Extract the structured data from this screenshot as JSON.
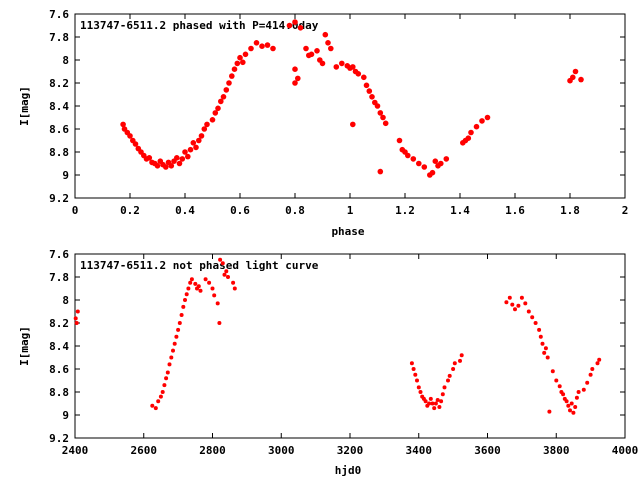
{
  "chart_data": [
    {
      "type": "scatter",
      "title": "113747-6511.2 phased with P=414.0day",
      "xlabel": "phase",
      "ylabel": "I[mag]",
      "xlim": [
        0,
        2
      ],
      "ylim": [
        7.6,
        9.2
      ],
      "y_inverted": true,
      "grid": false,
      "marker_color": "#ff0000",
      "x_ticks": [
        "0",
        "0.2",
        "0.4",
        "0.6",
        "0.8",
        "1",
        "1.2",
        "1.4",
        "1.6",
        "1.8",
        "2"
      ],
      "y_ticks": [
        "7.6",
        "7.8",
        "8",
        "8.2",
        "8.4",
        "8.6",
        "8.8",
        "9",
        "9.2"
      ],
      "series": [
        {
          "points": [
            [
              0.175,
              8.56
            ],
            [
              0.18,
              8.6
            ],
            [
              0.19,
              8.63
            ],
            [
              0.2,
              8.66
            ],
            [
              0.21,
              8.7
            ],
            [
              0.22,
              8.73
            ],
            [
              0.23,
              8.77
            ],
            [
              0.24,
              8.8
            ],
            [
              0.25,
              8.83
            ],
            [
              0.26,
              8.86
            ],
            [
              0.27,
              8.85
            ],
            [
              0.28,
              8.89
            ],
            [
              0.29,
              8.9
            ],
            [
              0.3,
              8.92
            ],
            [
              0.31,
              8.88
            ],
            [
              0.32,
              8.91
            ],
            [
              0.33,
              8.93
            ],
            [
              0.34,
              8.89
            ],
            [
              0.35,
              8.92
            ],
            [
              0.36,
              8.88
            ],
            [
              0.37,
              8.85
            ],
            [
              0.38,
              8.9
            ],
            [
              0.39,
              8.86
            ],
            [
              0.4,
              8.8
            ],
            [
              0.41,
              8.84
            ],
            [
              0.42,
              8.78
            ],
            [
              0.43,
              8.72
            ],
            [
              0.44,
              8.76
            ],
            [
              0.45,
              8.7
            ],
            [
              0.46,
              8.66
            ],
            [
              0.47,
              8.6
            ],
            [
              0.48,
              8.56
            ],
            [
              0.5,
              8.52
            ],
            [
              0.51,
              8.46
            ],
            [
              0.52,
              8.42
            ],
            [
              0.53,
              8.36
            ],
            [
              0.54,
              8.32
            ],
            [
              0.55,
              8.26
            ],
            [
              0.56,
              8.2
            ],
            [
              0.57,
              8.14
            ],
            [
              0.58,
              8.08
            ],
            [
              0.59,
              8.03
            ],
            [
              0.6,
              7.98
            ],
            [
              0.61,
              8.02
            ],
            [
              0.62,
              7.95
            ],
            [
              0.64,
              7.9
            ],
            [
              0.66,
              7.85
            ],
            [
              0.68,
              7.88
            ],
            [
              0.7,
              7.87
            ],
            [
              0.72,
              7.9
            ],
            [
              0.78,
              7.7
            ],
            [
              0.8,
              7.67
            ],
            [
              0.82,
              7.72
            ],
            [
              0.8,
              8.08
            ],
            [
              0.81,
              8.16
            ],
            [
              0.8,
              8.2
            ],
            [
              0.84,
              7.9
            ],
            [
              0.85,
              7.96
            ],
            [
              0.86,
              7.95
            ],
            [
              0.88,
              7.92
            ],
            [
              0.89,
              8.0
            ],
            [
              0.9,
              8.03
            ],
            [
              0.91,
              7.78
            ],
            [
              0.92,
              7.85
            ],
            [
              0.93,
              7.9
            ],
            [
              0.95,
              8.06
            ],
            [
              0.97,
              8.03
            ],
            [
              0.99,
              8.05
            ],
            [
              1.0,
              8.07
            ],
            [
              1.01,
              8.06
            ],
            [
              1.02,
              8.1
            ],
            [
              1.03,
              8.12
            ],
            [
              1.05,
              8.15
            ],
            [
              1.06,
              8.22
            ],
            [
              1.07,
              8.27
            ],
            [
              1.08,
              8.32
            ],
            [
              1.09,
              8.37
            ],
            [
              1.1,
              8.4
            ],
            [
              1.11,
              8.46
            ],
            [
              1.12,
              8.5
            ],
            [
              1.13,
              8.55
            ],
            [
              1.01,
              8.56
            ],
            [
              1.11,
              8.97
            ],
            [
              1.18,
              8.7
            ],
            [
              1.19,
              8.78
            ],
            [
              1.2,
              8.8
            ],
            [
              1.21,
              8.83
            ],
            [
              1.23,
              8.86
            ],
            [
              1.25,
              8.9
            ],
            [
              1.27,
              8.93
            ],
            [
              1.29,
              9.0
            ],
            [
              1.3,
              8.98
            ],
            [
              1.31,
              8.88
            ],
            [
              1.32,
              8.92
            ],
            [
              1.33,
              8.9
            ],
            [
              1.35,
              8.86
            ],
            [
              1.41,
              8.72
            ],
            [
              1.42,
              8.7
            ],
            [
              1.43,
              8.68
            ],
            [
              1.44,
              8.63
            ],
            [
              1.46,
              8.58
            ],
            [
              1.48,
              8.53
            ],
            [
              1.5,
              8.5
            ],
            [
              1.8,
              8.18
            ],
            [
              1.81,
              8.15
            ],
            [
              1.82,
              8.1
            ],
            [
              1.84,
              8.17
            ]
          ]
        }
      ]
    },
    {
      "type": "scatter",
      "title": "113747-6511.2 not phased light curve",
      "xlabel": "hjd0",
      "ylabel": "I[mag]",
      "xlim": [
        2400,
        4000
      ],
      "ylim": [
        7.6,
        9.2
      ],
      "y_inverted": true,
      "grid": false,
      "marker_color": "#ff0000",
      "x_ticks": [
        "2400",
        "2600",
        "2800",
        "3000",
        "3200",
        "3400",
        "3600",
        "3800",
        "4000"
      ],
      "y_ticks": [
        "7.6",
        "7.8",
        "8",
        "8.2",
        "8.4",
        "8.6",
        "8.8",
        "9",
        "9.2"
      ],
      "series": [
        {
          "points": [
            [
              2402,
              8.16
            ],
            [
              2408,
              8.1
            ],
            [
              2405,
              8.2
            ],
            [
              2625,
              8.92
            ],
            [
              2635,
              8.94
            ],
            [
              2642,
              8.88
            ],
            [
              2650,
              8.84
            ],
            [
              2655,
              8.8
            ],
            [
              2660,
              8.74
            ],
            [
              2665,
              8.68
            ],
            [
              2670,
              8.63
            ],
            [
              2675,
              8.56
            ],
            [
              2680,
              8.5
            ],
            [
              2685,
              8.44
            ],
            [
              2690,
              8.38
            ],
            [
              2695,
              8.32
            ],
            [
              2700,
              8.26
            ],
            [
              2705,
              8.2
            ],
            [
              2710,
              8.13
            ],
            [
              2715,
              8.06
            ],
            [
              2720,
              8.0
            ],
            [
              2725,
              7.95
            ],
            [
              2730,
              7.9
            ],
            [
              2735,
              7.85
            ],
            [
              2740,
              7.82
            ],
            [
              2750,
              7.86
            ],
            [
              2755,
              7.9
            ],
            [
              2760,
              7.88
            ],
            [
              2765,
              7.92
            ],
            [
              2780,
              7.82
            ],
            [
              2790,
              7.85
            ],
            [
              2800,
              7.9
            ],
            [
              2805,
              7.96
            ],
            [
              2815,
              8.03
            ],
            [
              2820,
              8.2
            ],
            [
              2822,
              7.65
            ],
            [
              2830,
              7.68
            ],
            [
              2835,
              7.78
            ],
            [
              2840,
              7.75
            ],
            [
              2845,
              7.8
            ],
            [
              2860,
              7.85
            ],
            [
              2865,
              7.9
            ],
            [
              3380,
              8.55
            ],
            [
              3385,
              8.6
            ],
            [
              3390,
              8.65
            ],
            [
              3395,
              8.7
            ],
            [
              3400,
              8.76
            ],
            [
              3405,
              8.8
            ],
            [
              3410,
              8.84
            ],
            [
              3415,
              8.86
            ],
            [
              3420,
              8.88
            ],
            [
              3425,
              8.92
            ],
            [
              3430,
              8.9
            ],
            [
              3435,
              8.86
            ],
            [
              3440,
              8.9
            ],
            [
              3445,
              8.94
            ],
            [
              3450,
              8.9
            ],
            [
              3455,
              8.87
            ],
            [
              3460,
              8.93
            ],
            [
              3465,
              8.88
            ],
            [
              3470,
              8.82
            ],
            [
              3475,
              8.76
            ],
            [
              3485,
              8.7
            ],
            [
              3490,
              8.66
            ],
            [
              3500,
              8.6
            ],
            [
              3505,
              8.55
            ],
            [
              3520,
              8.53
            ],
            [
              3525,
              8.48
            ],
            [
              3655,
              8.02
            ],
            [
              3665,
              7.98
            ],
            [
              3672,
              8.04
            ],
            [
              3680,
              8.08
            ],
            [
              3690,
              8.05
            ],
            [
              3700,
              7.98
            ],
            [
              3710,
              8.03
            ],
            [
              3720,
              8.1
            ],
            [
              3730,
              8.15
            ],
            [
              3740,
              8.2
            ],
            [
              3750,
              8.26
            ],
            [
              3755,
              8.32
            ],
            [
              3760,
              8.38
            ],
            [
              3765,
              8.46
            ],
            [
              3770,
              8.42
            ],
            [
              3775,
              8.5
            ],
            [
              3780,
              8.97
            ],
            [
              3790,
              8.62
            ],
            [
              3800,
              8.7
            ],
            [
              3810,
              8.75
            ],
            [
              3815,
              8.8
            ],
            [
              3820,
              8.82
            ],
            [
              3825,
              8.86
            ],
            [
              3830,
              8.88
            ],
            [
              3835,
              8.92
            ],
            [
              3840,
              8.96
            ],
            [
              3845,
              8.9
            ],
            [
              3850,
              8.98
            ],
            [
              3855,
              8.93
            ],
            [
              3860,
              8.85
            ],
            [
              3865,
              8.8
            ],
            [
              3880,
              8.78
            ],
            [
              3890,
              8.72
            ],
            [
              3900,
              8.65
            ],
            [
              3905,
              8.6
            ],
            [
              3920,
              8.55
            ],
            [
              3925,
              8.52
            ]
          ]
        }
      ]
    }
  ]
}
